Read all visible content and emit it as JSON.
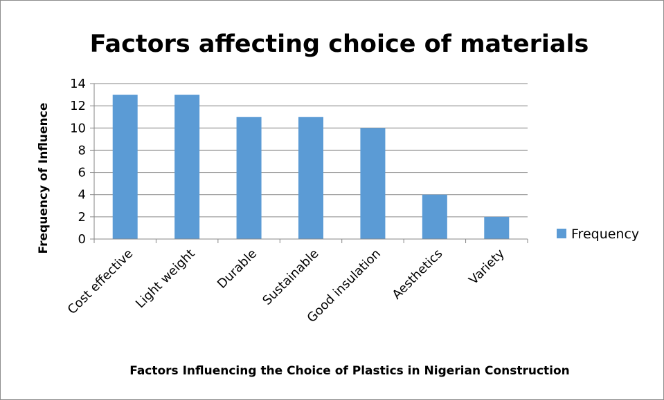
{
  "chart_data": {
    "type": "bar",
    "title": "Factors affecting choice of materials",
    "xlabel": "Factors Influencing the Choice of Plastics in Nigerian Construction",
    "ylabel": "Frequency of Influence",
    "categories": [
      "Cost effective",
      "Light weight",
      "Durable",
      "Sustainable",
      "Good insulation",
      "Aesthetics",
      "Variety"
    ],
    "series": [
      {
        "name": "Frequency",
        "values": [
          13,
          13,
          11,
          11,
          10,
          4,
          2
        ],
        "color": "#5b9bd5"
      }
    ],
    "ylim": [
      0,
      14
    ],
    "yticks": [
      "0",
      "2",
      "4",
      "6",
      "8",
      "10",
      "12",
      "14"
    ],
    "grid": true,
    "legend": "right"
  }
}
